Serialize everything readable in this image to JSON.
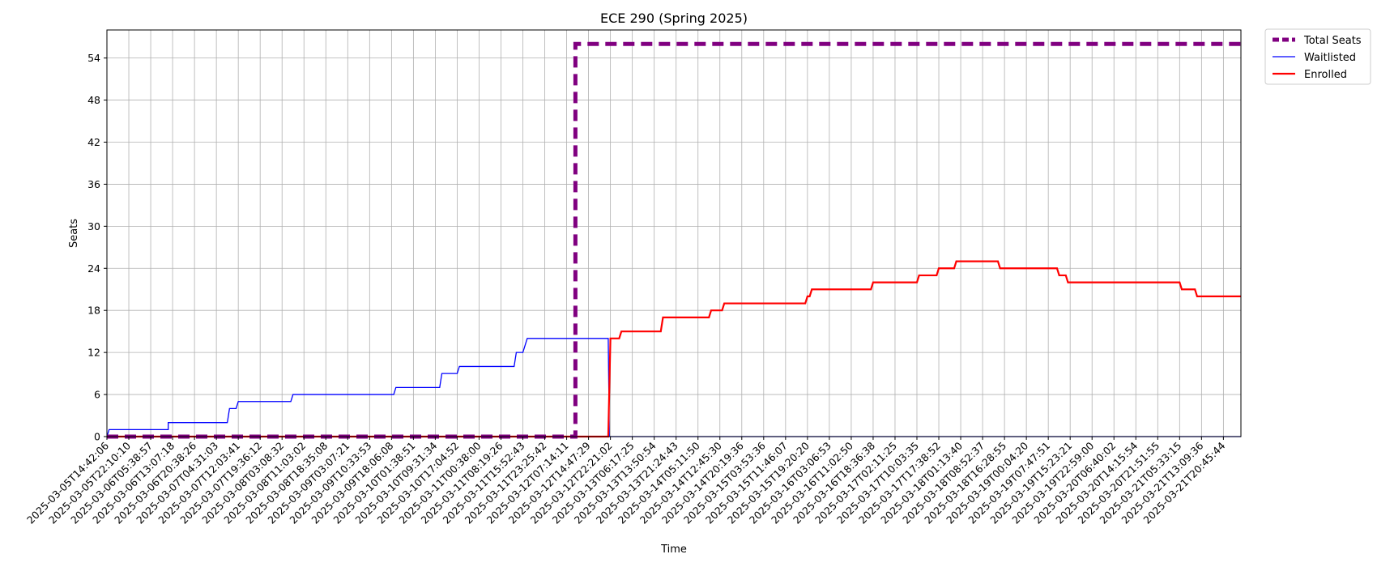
{
  "chart_data": {
    "type": "line",
    "title": "ECE 290 (Spring 2025)",
    "xlabel": "Time",
    "ylabel": "Seats",
    "ylim": [
      0,
      58
    ],
    "yticks": [
      0,
      6,
      12,
      18,
      24,
      30,
      36,
      42,
      48,
      54
    ],
    "grid": true,
    "legend_position": "outside-top-right",
    "x_ticks": [
      "2025-03-05T14:42:06",
      "2025-03-05T22:10:10",
      "2025-03-06T05:38:57",
      "2025-03-06T13:07:18",
      "2025-03-06T20:38:26",
      "2025-03-07T04:31:03",
      "2025-03-07T12:03:41",
      "2025-03-07T19:36:12",
      "2025-03-08T03:08:32",
      "2025-03-08T11:03:02",
      "2025-03-08T18:35:08",
      "2025-03-09T03:07:21",
      "2025-03-09T10:33:53",
      "2025-03-09T18:06:08",
      "2025-03-10T01:38:51",
      "2025-03-10T09:31:34",
      "2025-03-10T17:04:52",
      "2025-03-11T00:38:00",
      "2025-03-11T08:19:26",
      "2025-03-11T15:52:43",
      "2025-03-11T23:25:42",
      "2025-03-12T07:14:11",
      "2025-03-12T14:47:29",
      "2025-03-12T22:21:02",
      "2025-03-13T06:17:25",
      "2025-03-13T13:50:54",
      "2025-03-13T21:24:43",
      "2025-03-14T05:11:50",
      "2025-03-14T12:45:30",
      "2025-03-14T20:19:36",
      "2025-03-15T03:53:36",
      "2025-03-15T11:46:07",
      "2025-03-15T19:20:20",
      "2025-03-16T03:06:53",
      "2025-03-16T11:02:50",
      "2025-03-16T18:36:38",
      "2025-03-17T02:11:25",
      "2025-03-17T10:03:35",
      "2025-03-17T17:38:52",
      "2025-03-18T01:13:40",
      "2025-03-18T08:52:37",
      "2025-03-18T16:28:55",
      "2025-03-19T00:04:20",
      "2025-03-19T07:47:51",
      "2025-03-19T15:23:21",
      "2025-03-19T22:59:00",
      "2025-03-20T06:40:02",
      "2025-03-20T14:15:54",
      "2025-03-20T21:51:55",
      "2025-03-21T05:33:15",
      "2025-03-21T13:09:36",
      "2025-03-21T20:45:44"
    ],
    "x_range": [
      0,
      51.8
    ],
    "series": [
      {
        "name": "Total Seats",
        "color": "#800080",
        "style": "dashed",
        "points": [
          [
            0,
            0
          ],
          [
            21.4,
            0
          ],
          [
            21.4,
            56
          ],
          [
            51.8,
            56
          ]
        ]
      },
      {
        "name": "Waitlisted",
        "color": "#0000ff",
        "style": "solid",
        "points": [
          [
            0,
            0
          ],
          [
            0.1,
            1
          ],
          [
            2.8,
            1
          ],
          [
            2.8,
            2
          ],
          [
            5.5,
            2
          ],
          [
            5.6,
            4
          ],
          [
            5.9,
            4
          ],
          [
            6.0,
            5
          ],
          [
            8.4,
            5
          ],
          [
            8.5,
            6
          ],
          [
            13.1,
            6
          ],
          [
            13.2,
            7
          ],
          [
            15.2,
            7
          ],
          [
            15.3,
            9
          ],
          [
            16.0,
            9
          ],
          [
            16.1,
            10
          ],
          [
            18.6,
            10
          ],
          [
            18.7,
            12
          ],
          [
            19.0,
            12
          ],
          [
            19.1,
            13
          ],
          [
            19.2,
            14
          ],
          [
            22.9,
            14
          ],
          [
            22.95,
            0
          ],
          [
            51.8,
            0
          ]
        ]
      },
      {
        "name": "Enrolled",
        "color": "#ff0000",
        "style": "solid",
        "points": [
          [
            0,
            0
          ],
          [
            22.9,
            0
          ],
          [
            23.0,
            14
          ],
          [
            23.4,
            14
          ],
          [
            23.5,
            15
          ],
          [
            25.3,
            15
          ],
          [
            25.4,
            17
          ],
          [
            27.5,
            17
          ],
          [
            27.6,
            18
          ],
          [
            28.1,
            18
          ],
          [
            28.2,
            19
          ],
          [
            31.9,
            19
          ],
          [
            32.0,
            20
          ],
          [
            32.1,
            20
          ],
          [
            32.2,
            21
          ],
          [
            34.9,
            21
          ],
          [
            35.0,
            22
          ],
          [
            37.0,
            22
          ],
          [
            37.1,
            23
          ],
          [
            37.9,
            23
          ],
          [
            38.0,
            24
          ],
          [
            38.7,
            24
          ],
          [
            38.8,
            25
          ],
          [
            40.7,
            25
          ],
          [
            40.8,
            24
          ],
          [
            43.4,
            24
          ],
          [
            43.5,
            23
          ],
          [
            43.8,
            23
          ],
          [
            43.9,
            22
          ],
          [
            49.0,
            22
          ],
          [
            49.1,
            21
          ],
          [
            49.7,
            21
          ],
          [
            49.8,
            20
          ],
          [
            51.8,
            20
          ]
        ]
      }
    ]
  }
}
